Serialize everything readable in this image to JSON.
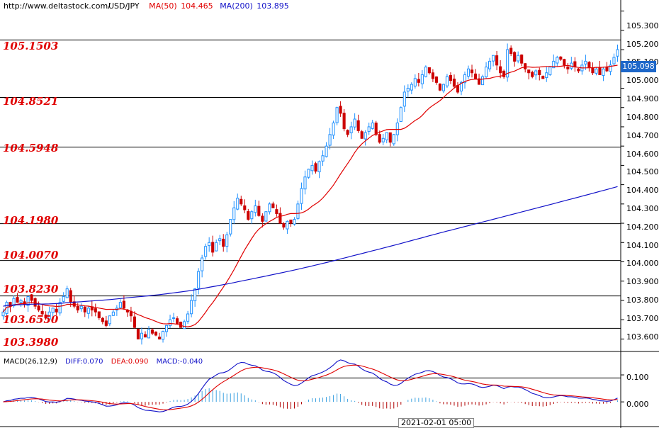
{
  "header": {
    "url": "http://www.deltastock.com/",
    "symbol": "USD/JPY",
    "ma50_label": "MA(50)",
    "ma50_value": "104.465",
    "ma200_label": "MA(200)",
    "ma200_value": "103.895"
  },
  "colors": {
    "bull": "#1e90ff",
    "bear": "#cc0000",
    "ma50": "#e00000",
    "ma200": "#1010c8",
    "diff": "#1010c8",
    "dea": "#e00000",
    "level": "#e00000",
    "current_box": "#1e67c9"
  },
  "levels": [
    "105.1503",
    "104.8521",
    "104.5948",
    "104.1980",
    "104.0070",
    "103.8230",
    "103.6550",
    "103.3980"
  ],
  "price_axis": {
    "ticks": [
      "105.300",
      "105.200",
      "105.100",
      "105.000",
      "104.900",
      "104.800",
      "104.700",
      "104.600",
      "104.500",
      "104.400",
      "104.300",
      "104.200",
      "104.100",
      "104.000",
      "103.900",
      "103.800",
      "103.700",
      "103.600"
    ],
    "current": "105.098"
  },
  "macd": {
    "title": "MACD(26,12,9)",
    "diff": "DIFF:0.070",
    "dea": "DEA:0.090",
    "macd": "MACD:-0.040",
    "ticks": [
      "0.100",
      "0.000"
    ]
  },
  "time_label": "2021-02-01 05:00",
  "chart_data": {
    "type": "candlestick",
    "title": "USD/JPY",
    "ylim": [
      103.55,
      105.35
    ],
    "close": [
      103.74,
      103.79,
      103.77,
      103.81,
      103.79,
      103.8,
      103.78,
      103.82,
      103.8,
      103.77,
      103.75,
      103.73,
      103.71,
      103.74,
      103.76,
      103.74,
      103.79,
      103.82,
      103.86,
      103.79,
      103.77,
      103.75,
      103.77,
      103.74,
      103.76,
      103.75,
      103.74,
      103.71,
      103.69,
      103.67,
      103.72,
      103.74,
      103.76,
      103.79,
      103.76,
      103.74,
      103.72,
      103.66,
      103.6,
      103.63,
      103.61,
      103.65,
      103.63,
      103.62,
      103.6,
      103.64,
      103.67,
      103.7,
      103.71,
      103.68,
      103.66,
      103.69,
      103.73,
      103.8,
      103.86,
      103.95,
      104.02,
      104.08,
      104.1,
      104.05,
      104.1,
      104.12,
      104.08,
      104.14,
      104.22,
      104.28,
      104.33,
      104.3,
      104.27,
      104.22,
      104.26,
      104.29,
      104.24,
      104.21,
      104.26,
      104.3,
      104.28,
      104.25,
      104.2,
      104.18,
      104.21,
      104.2,
      104.22,
      104.3,
      104.38,
      104.44,
      104.48,
      104.5,
      104.47,
      104.52,
      104.55,
      104.6,
      104.66,
      104.72,
      104.8,
      104.77,
      104.69,
      104.66,
      104.7,
      104.74,
      104.68,
      104.64,
      104.67,
      104.7,
      104.72,
      104.66,
      104.62,
      104.64,
      104.67,
      104.62,
      104.66,
      104.72,
      104.8,
      104.88,
      104.9,
      104.92,
      104.95,
      104.93,
      104.97,
      105.01,
      104.98,
      104.95,
      104.93,
      104.89,
      104.92,
      104.96,
      104.94,
      104.91,
      104.88,
      104.93,
      104.97,
      105.0,
      104.98,
      104.95,
      104.92,
      104.96,
      105.01,
      105.04,
      105.07,
      105.02,
      104.98,
      104.96,
      105.1,
      105.08,
      105.04,
      105.07,
      105.03,
      105.0,
      104.98,
      104.96,
      104.99,
      104.97,
      104.95,
      104.98,
      105.01,
      105.04,
      105.06,
      105.05,
      105.02,
      105.0,
      105.03,
      105.01,
      104.99,
      105.02,
      105.04,
      105.01,
      104.98,
      105.0,
      104.97,
      105.0,
      104.99,
      105.02,
      105.06,
      105.1
    ],
    "ma50_endpoints": [
      103.82,
      104.465,
      105.0
    ],
    "ma200_endpoints": [
      103.77,
      103.895,
      104.39
    ],
    "macd_ylim": [
      -0.06,
      0.15
    ]
  }
}
